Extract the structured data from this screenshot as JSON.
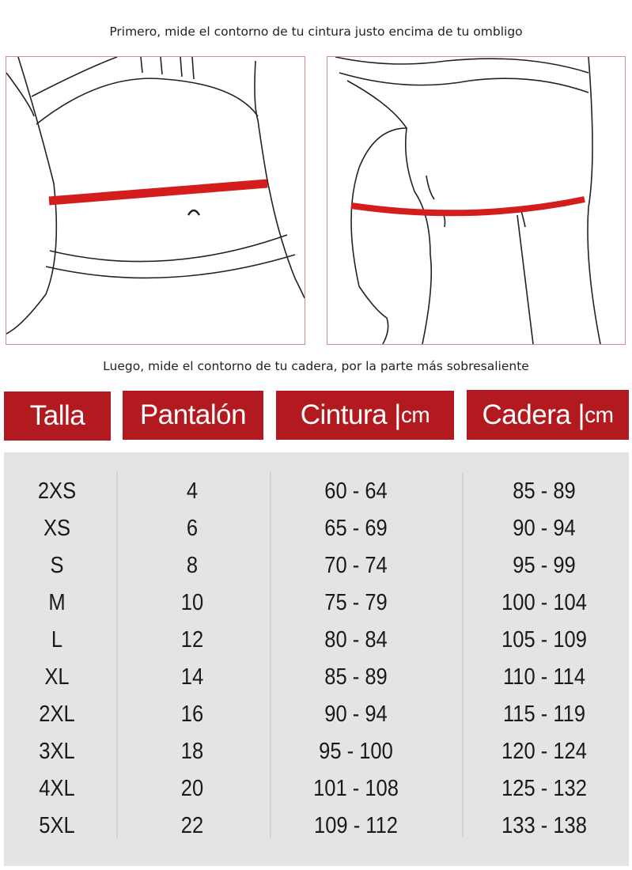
{
  "captions": {
    "top": "Primero, mide el contorno de tu cintura justo encima de tu ombligo",
    "bottom": "Luego, mide el contorno de tu cadera, por la parte más sobresaliente"
  },
  "colors": {
    "accent": "#b21a1f",
    "measure_band": "#d41e1e",
    "table_bg": "#e4e4e4"
  },
  "headers": [
    {
      "label": "Talla",
      "unit": ""
    },
    {
      "label": "Pantalón",
      "unit": ""
    },
    {
      "label": "Cintura |",
      "unit": "cm"
    },
    {
      "label": "Cadera |",
      "unit": "cm"
    }
  ],
  "columns": {
    "talla": [
      "2XS",
      "XS",
      "S",
      "M",
      "L",
      "XL",
      "2XL",
      "3XL",
      "4XL",
      "5XL"
    ],
    "pantalon": [
      "4",
      "6",
      "8",
      "10",
      "12",
      "14",
      "16",
      "18",
      "20",
      "22"
    ],
    "cintura": [
      "60 - 64",
      "65 - 69",
      "70 - 74",
      "75 - 79",
      "80 - 84",
      "85 - 89",
      "90 - 94",
      "95 - 100",
      "101 - 108",
      "109 - 112"
    ],
    "cadera": [
      "85 - 89",
      "90 - 94",
      "95 - 99",
      "100 - 104",
      "105 - 109",
      "110 - 114",
      "115 - 119",
      "120 - 124",
      "125 - 132",
      "133 - 138"
    ]
  }
}
